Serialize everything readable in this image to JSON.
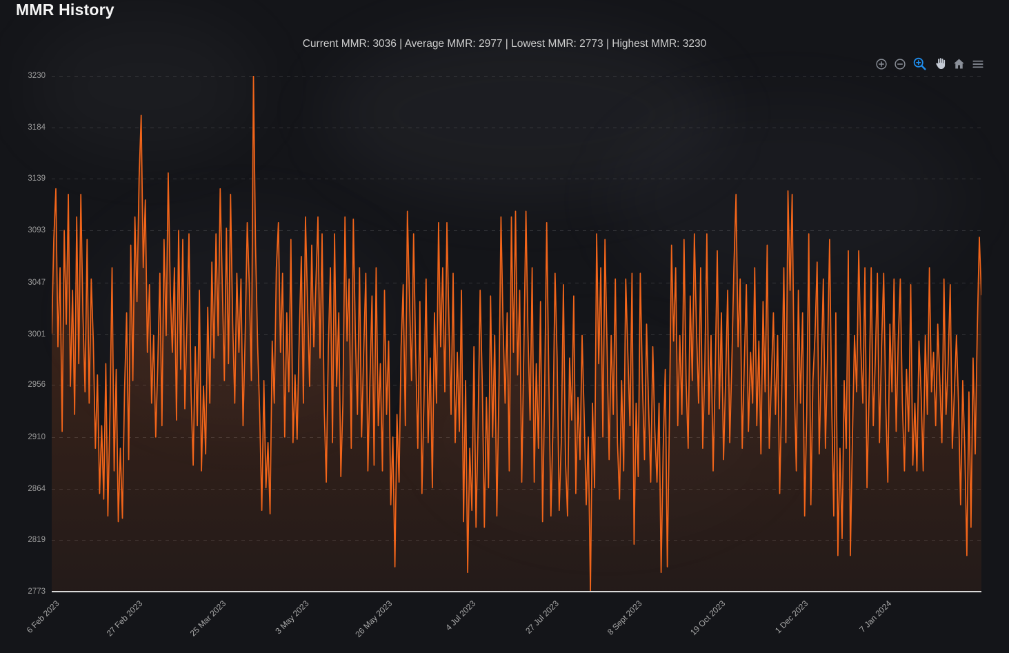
{
  "header": {
    "title": "MMR History"
  },
  "stats": {
    "full_text": "Current MMR: 3036 | Average MMR: 2977 | Lowest MMR: 2773 | Highest MMR: 3230",
    "current_mmr": 3036,
    "average_mmr": 2977,
    "lowest_mmr": 2773,
    "highest_mmr": 3230,
    "separator": " | "
  },
  "toolbar": {
    "buttons": [
      {
        "name": "zoom-in",
        "active": false
      },
      {
        "name": "zoom-out",
        "active": false
      },
      {
        "name": "selection-zoom",
        "active": true
      },
      {
        "name": "pan",
        "active": false
      },
      {
        "name": "reset-zoom-home",
        "active": false
      },
      {
        "name": "menu",
        "active": false
      }
    ],
    "active_color": "#1f8ff0",
    "idle_color": "#8b9099"
  },
  "colors": {
    "line": "#f2651a",
    "background": "#141519",
    "accent_blue": "#1f8ff0"
  },
  "chart_data": {
    "type": "line",
    "title": "",
    "xlabel": "",
    "ylabel": "",
    "legend": "none",
    "grid": "horizontal-dashed",
    "ylim": [
      2773,
      3230
    ],
    "y_ticks": [
      2773,
      2819,
      2864,
      2910,
      2956,
      3001,
      3047,
      3093,
      3139,
      3184,
      3230
    ],
    "x_tick_labels": [
      "6 Feb 2023",
      "27 Feb 2023",
      "25 Mar 2023",
      "3 May 2023",
      "26 May 2023",
      "4 Jul 2023",
      "27 Jul 2023",
      "8 Sept 2023",
      "19 Oct 2023",
      "1 Dec 2023",
      "7 Jan 2024"
    ],
    "x_tick_spacing_pct": 8.95,
    "series": [
      {
        "name": "MMR",
        "color": "#f2651a",
        "values": [
          3002,
          3085,
          3130,
          2990,
          3060,
          2915,
          3093,
          3010,
          3125,
          2955,
          3040,
          2930,
          3105,
          2975,
          3125,
          3020,
          2950,
          3085,
          2940,
          3050,
          2995,
          2900,
          2965,
          2860,
          2920,
          2855,
          2975,
          2840,
          2930,
          3060,
          2880,
          2970,
          2835,
          2900,
          2838,
          2950,
          3020,
          2890,
          3080,
          2960,
          3105,
          3030,
          3140,
          3195,
          3060,
          3120,
          2985,
          3045,
          2940,
          3000,
          2910,
          2975,
          3055,
          2920,
          3085,
          3000,
          3144,
          3040,
          2985,
          3060,
          2925,
          3093,
          2970,
          3085,
          2935,
          3010,
          3090,
          2950,
          2885,
          2990,
          2920,
          3040,
          2880,
          2955,
          2895,
          3025,
          2940,
          3065,
          2980,
          3090,
          3000,
          3130,
          3045,
          2960,
          3095,
          2975,
          3125,
          3010,
          2940,
          3055,
          2985,
          3050,
          2920,
          3000,
          3100,
          3045,
          2960,
          3230,
          3080,
          2990,
          2930,
          2845,
          2960,
          2865,
          2905,
          2842,
          2995,
          2940,
          3060,
          3100,
          2985,
          3055,
          2910,
          3020,
          2950,
          3085,
          2905,
          2965,
          2908,
          3000,
          3070,
          2940,
          3105,
          3030,
          2955,
          3080,
          2990,
          3045,
          3105,
          2980,
          3090,
          2935,
          2870,
          2990,
          3060,
          2905,
          3090,
          2955,
          3020,
          2875,
          2940,
          3105,
          2995,
          3050,
          2900,
          3103,
          3000,
          2930,
          3060,
          2910,
          2985,
          3055,
          2880,
          2960,
          3035,
          2885,
          3060,
          2920,
          2975,
          2880,
          3040,
          2930,
          2995,
          2850,
          2910,
          2795,
          2930,
          2870,
          2990,
          3045,
          2920,
          3110,
          3035,
          2960,
          3090,
          2985,
          2900,
          3030,
          2860,
          2945,
          3050,
          2905,
          2980,
          2865,
          3020,
          2940,
          3100,
          2990,
          3060,
          2950,
          3100,
          3010,
          2930,
          3055,
          2905,
          2985,
          2915,
          3040,
          2835,
          2960,
          2790,
          2900,
          2845,
          2990,
          2830,
          2920,
          3040,
          2960,
          2830,
          2945,
          2865,
          3035,
          2910,
          3000,
          2840,
          2950,
          3105,
          3010,
          2940,
          3020,
          2880,
          3105,
          2985,
          3110,
          2965,
          3040,
          2870,
          2990,
          3110,
          3000,
          2925,
          3060,
          2870,
          2975,
          2900,
          3030,
          2835,
          2950,
          3100,
          2965,
          2840,
          2920,
          3055,
          2980,
          2845,
          2905,
          3045,
          2890,
          2840,
          2980,
          2925,
          3035,
          2860,
          2945,
          2890,
          3000,
          2930,
          2850,
          2910,
          2773,
          2940,
          2865,
          3090,
          2975,
          3060,
          2910,
          3085,
          2990,
          2890,
          3000,
          2930,
          3050,
          2905,
          2855,
          2960,
          2880,
          3050,
          2985,
          2920,
          3055,
          2815,
          2940,
          2875,
          3055,
          2960,
          2890,
          3010,
          2935,
          2870,
          2990,
          2915,
          2870,
          2940,
          2790,
          2900,
          2970,
          2795,
          2930,
          3080,
          2995,
          3060,
          2920,
          3000,
          2930,
          3085,
          2960,
          2900,
          3035,
          2960,
          3090,
          3005,
          2940,
          3060,
          2900,
          2970,
          3090,
          2930,
          3000,
          2880,
          2965,
          3075,
          2935,
          3020,
          2890,
          2960,
          3040,
          2905,
          2975,
          3060,
          3125,
          2990,
          3050,
          2900,
          2975,
          3045,
          2915,
          2985,
          2940,
          3060,
          2920,
          2995,
          2895,
          3030,
          2950,
          3080,
          2900,
          2960,
          3020,
          2930,
          3000,
          2860,
          2950,
          3060,
          2905,
          3128,
          3040,
          3125,
          2960,
          2880,
          3040,
          2940,
          3020,
          2840,
          2930,
          3090,
          2850,
          2960,
          3000,
          3065,
          2895,
          2975,
          3050,
          2900,
          2980,
          3085,
          2940,
          2840,
          3020,
          2805,
          2900,
          2820,
          2960,
          2900,
          3075,
          2805,
          2910,
          3000,
          2950,
          3075,
          2990,
          2940,
          3060,
          2865,
          2950,
          3060,
          2920,
          2980,
          3055,
          2905,
          2990,
          3055,
          2940,
          2870,
          3010,
          2950,
          3050,
          2915,
          2995,
          3050,
          2940,
          2880,
          2970,
          2915,
          3045,
          2885,
          2940,
          2880,
          2995,
          2950,
          2880,
          3000,
          2930,
          3060,
          2950,
          2985,
          2920,
          3010,
          2960,
          2905,
          3050,
          2930,
          2975,
          3045,
          2900,
          2950,
          3000,
          2940,
          2850,
          2960,
          2900,
          2805,
          2950,
          2830,
          2980,
          2895,
          3005,
          3087,
          3036
        ]
      }
    ]
  }
}
